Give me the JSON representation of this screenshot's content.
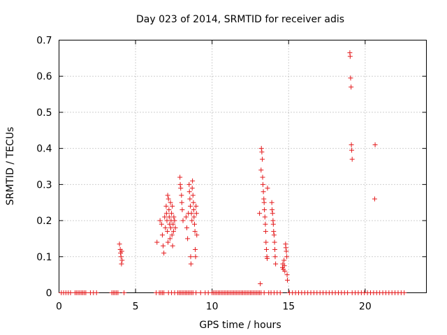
{
  "chart_data": {
    "type": "scatter",
    "title": "Day 023 of 2014, SRMTID for receiver adis",
    "xlabel": "GPS time / hours",
    "ylabel": "SRMTID / TECUs",
    "xlim": [
      0,
      24
    ],
    "ylim": [
      0,
      0.7
    ],
    "xticks": [
      0,
      5,
      10,
      15,
      20
    ],
    "xtick_labels": [
      "0",
      "5",
      "10",
      "15",
      "20"
    ],
    "yticks": [
      0,
      0.1,
      0.2,
      0.3,
      0.4,
      0.5,
      0.6,
      0.7
    ],
    "ytick_labels": [
      "0",
      "0.1",
      "0.2",
      "0.3",
      "0.4",
      "0.5",
      "0.6",
      "0.7"
    ],
    "grid": true,
    "marker": "+",
    "color": "#e41a1c",
    "series": [
      {
        "name": "SRMTID",
        "points": [
          [
            3.95,
            0.135
          ],
          [
            4.0,
            0.12
          ],
          [
            4.02,
            0.11
          ],
          [
            4.05,
            0.1
          ],
          [
            4.08,
            0.08
          ],
          [
            4.1,
            0.115
          ],
          [
            4.12,
            0.09
          ],
          [
            6.4,
            0.14
          ],
          [
            6.6,
            0.2
          ],
          [
            6.7,
            0.19
          ],
          [
            6.75,
            0.16
          ],
          [
            6.8,
            0.13
          ],
          [
            6.85,
            0.11
          ],
          [
            6.9,
            0.21
          ],
          [
            6.95,
            0.18
          ],
          [
            7.0,
            0.24
          ],
          [
            7.02,
            0.22
          ],
          [
            7.05,
            0.2
          ],
          [
            7.08,
            0.17
          ],
          [
            7.1,
            0.27
          ],
          [
            7.12,
            0.14
          ],
          [
            7.15,
            0.26
          ],
          [
            7.18,
            0.23
          ],
          [
            7.2,
            0.21
          ],
          [
            7.22,
            0.19
          ],
          [
            7.25,
            0.15
          ],
          [
            7.28,
            0.25
          ],
          [
            7.3,
            0.18
          ],
          [
            7.32,
            0.2
          ],
          [
            7.35,
            0.22
          ],
          [
            7.38,
            0.16
          ],
          [
            7.4,
            0.24
          ],
          [
            7.42,
            0.13
          ],
          [
            7.45,
            0.19
          ],
          [
            7.48,
            0.17
          ],
          [
            7.5,
            0.21
          ],
          [
            7.55,
            0.2
          ],
          [
            7.6,
            0.18
          ],
          [
            7.9,
            0.32
          ],
          [
            7.92,
            0.3
          ],
          [
            7.95,
            0.29
          ],
          [
            8.0,
            0.27
          ],
          [
            8.02,
            0.25
          ],
          [
            8.05,
            0.23
          ],
          [
            8.1,
            0.2
          ],
          [
            8.3,
            0.21
          ],
          [
            8.35,
            0.18
          ],
          [
            8.4,
            0.15
          ],
          [
            8.45,
            0.22
          ],
          [
            8.5,
            0.3
          ],
          [
            8.52,
            0.28
          ],
          [
            8.55,
            0.26
          ],
          [
            8.58,
            0.24
          ],
          [
            8.6,
            0.1
          ],
          [
            8.62,
            0.08
          ],
          [
            8.65,
            0.22
          ],
          [
            8.68,
            0.2
          ],
          [
            8.7,
            0.29
          ],
          [
            8.72,
            0.31
          ],
          [
            8.75,
            0.27
          ],
          [
            8.78,
            0.25
          ],
          [
            8.8,
            0.23
          ],
          [
            8.82,
            0.21
          ],
          [
            8.85,
            0.19
          ],
          [
            8.88,
            0.17
          ],
          [
            8.9,
            0.12
          ],
          [
            8.92,
            0.1
          ],
          [
            8.95,
            0.24
          ],
          [
            8.98,
            0.22
          ],
          [
            9.0,
            0.16
          ],
          [
            13.1,
            0.22
          ],
          [
            13.15,
            0.025
          ],
          [
            13.2,
            0.34
          ],
          [
            13.22,
            0.4
          ],
          [
            13.25,
            0.39
          ],
          [
            13.28,
            0.37
          ],
          [
            13.3,
            0.32
          ],
          [
            13.32,
            0.3
          ],
          [
            13.35,
            0.28
          ],
          [
            13.38,
            0.26
          ],
          [
            13.4,
            0.25
          ],
          [
            13.42,
            0.23
          ],
          [
            13.45,
            0.21
          ],
          [
            13.48,
            0.19
          ],
          [
            13.5,
            0.17
          ],
          [
            13.52,
            0.14
          ],
          [
            13.55,
            0.12
          ],
          [
            13.58,
            0.1
          ],
          [
            13.6,
            0.095
          ],
          [
            13.62,
            0.29
          ],
          [
            13.9,
            0.25
          ],
          [
            13.92,
            0.23
          ],
          [
            13.95,
            0.22
          ],
          [
            13.98,
            0.2
          ],
          [
            14.0,
            0.19
          ],
          [
            14.02,
            0.17
          ],
          [
            14.05,
            0.16
          ],
          [
            14.08,
            0.14
          ],
          [
            14.1,
            0.12
          ],
          [
            14.12,
            0.1
          ],
          [
            14.15,
            0.08
          ],
          [
            14.6,
            0.07
          ],
          [
            14.62,
            0.08
          ],
          [
            14.65,
            0.065
          ],
          [
            14.7,
            0.09
          ],
          [
            14.72,
            0.075
          ],
          [
            14.75,
            0.06
          ],
          [
            14.8,
            0.135
          ],
          [
            14.82,
            0.125
          ],
          [
            14.85,
            0.115
          ],
          [
            14.88,
            0.1
          ],
          [
            14.9,
            0.05
          ],
          [
            14.92,
            0.035
          ],
          [
            19.0,
            0.665
          ],
          [
            19.02,
            0.655
          ],
          [
            19.05,
            0.595
          ],
          [
            19.08,
            0.57
          ],
          [
            19.1,
            0.41
          ],
          [
            19.12,
            0.395
          ],
          [
            19.15,
            0.37
          ],
          [
            20.65,
            0.41
          ],
          [
            20.62,
            0.26
          ],
          [
            0.15,
            0
          ],
          [
            0.3,
            0
          ],
          [
            0.45,
            0
          ],
          [
            0.6,
            0
          ],
          [
            0.75,
            0
          ],
          [
            1.05,
            0
          ],
          [
            1.15,
            0
          ],
          [
            1.25,
            0
          ],
          [
            1.35,
            0
          ],
          [
            1.45,
            0
          ],
          [
            1.55,
            0
          ],
          [
            1.65,
            0
          ],
          [
            1.75,
            0
          ],
          [
            2.05,
            0
          ],
          [
            2.25,
            0
          ],
          [
            2.45,
            0
          ],
          [
            3.45,
            0
          ],
          [
            3.55,
            0
          ],
          [
            3.65,
            0
          ],
          [
            3.75,
            0
          ],
          [
            3.85,
            0
          ],
          [
            4.25,
            0
          ],
          [
            6.35,
            0
          ],
          [
            6.55,
            0
          ],
          [
            6.65,
            0
          ],
          [
            6.75,
            0
          ],
          [
            6.85,
            0
          ],
          [
            7.15,
            0
          ],
          [
            7.35,
            0
          ],
          [
            7.55,
            0
          ],
          [
            7.75,
            0
          ],
          [
            7.85,
            0
          ],
          [
            7.95,
            0
          ],
          [
            8.05,
            0
          ],
          [
            8.15,
            0
          ],
          [
            8.25,
            0
          ],
          [
            8.35,
            0
          ],
          [
            8.45,
            0
          ],
          [
            8.55,
            0
          ],
          [
            8.65,
            0
          ],
          [
            8.75,
            0
          ],
          [
            8.95,
            0
          ],
          [
            9.25,
            0
          ],
          [
            9.55,
            0
          ],
          [
            9.75,
            0
          ],
          [
            10.0,
            0
          ],
          [
            10.1,
            0
          ],
          [
            10.2,
            0
          ],
          [
            10.3,
            0
          ],
          [
            10.4,
            0
          ],
          [
            10.5,
            0
          ],
          [
            10.6,
            0
          ],
          [
            10.7,
            0
          ],
          [
            10.8,
            0
          ],
          [
            10.9,
            0
          ],
          [
            11.0,
            0
          ],
          [
            11.1,
            0
          ],
          [
            11.2,
            0
          ],
          [
            11.3,
            0
          ],
          [
            11.4,
            0
          ],
          [
            11.5,
            0
          ],
          [
            11.6,
            0
          ],
          [
            11.7,
            0
          ],
          [
            11.8,
            0
          ],
          [
            11.9,
            0
          ],
          [
            12.0,
            0
          ],
          [
            12.1,
            0
          ],
          [
            12.2,
            0
          ],
          [
            12.3,
            0
          ],
          [
            12.4,
            0
          ],
          [
            12.5,
            0
          ],
          [
            12.6,
            0
          ],
          [
            12.7,
            0
          ],
          [
            12.8,
            0
          ],
          [
            12.9,
            0
          ],
          [
            13.0,
            0
          ],
          [
            13.1,
            0
          ],
          [
            13.2,
            0
          ],
          [
            13.4,
            0
          ],
          [
            13.7,
            0
          ],
          [
            13.85,
            0
          ],
          [
            14.05,
            0
          ],
          [
            14.25,
            0
          ],
          [
            14.45,
            0
          ],
          [
            15.05,
            0
          ],
          [
            15.25,
            0
          ],
          [
            15.45,
            0
          ],
          [
            15.65,
            0
          ],
          [
            15.85,
            0
          ],
          [
            16.05,
            0
          ],
          [
            16.25,
            0
          ],
          [
            16.45,
            0
          ],
          [
            16.65,
            0
          ],
          [
            16.85,
            0
          ],
          [
            17.05,
            0
          ],
          [
            17.25,
            0
          ],
          [
            17.45,
            0
          ],
          [
            17.65,
            0
          ],
          [
            17.85,
            0
          ],
          [
            18.05,
            0
          ],
          [
            18.25,
            0
          ],
          [
            18.45,
            0
          ],
          [
            18.65,
            0
          ],
          [
            18.85,
            0
          ],
          [
            19.15,
            0
          ],
          [
            19.35,
            0
          ],
          [
            19.55,
            0
          ],
          [
            19.75,
            0
          ],
          [
            19.95,
            0
          ],
          [
            20.15,
            0
          ],
          [
            20.35,
            0
          ],
          [
            20.55,
            0
          ],
          [
            20.75,
            0
          ],
          [
            20.95,
            0
          ],
          [
            21.15,
            0
          ],
          [
            21.35,
            0
          ],
          [
            21.55,
            0
          ],
          [
            21.75,
            0
          ],
          [
            21.95,
            0
          ],
          [
            22.15,
            0
          ],
          [
            22.35,
            0
          ],
          [
            22.55,
            0
          ]
        ]
      }
    ]
  }
}
